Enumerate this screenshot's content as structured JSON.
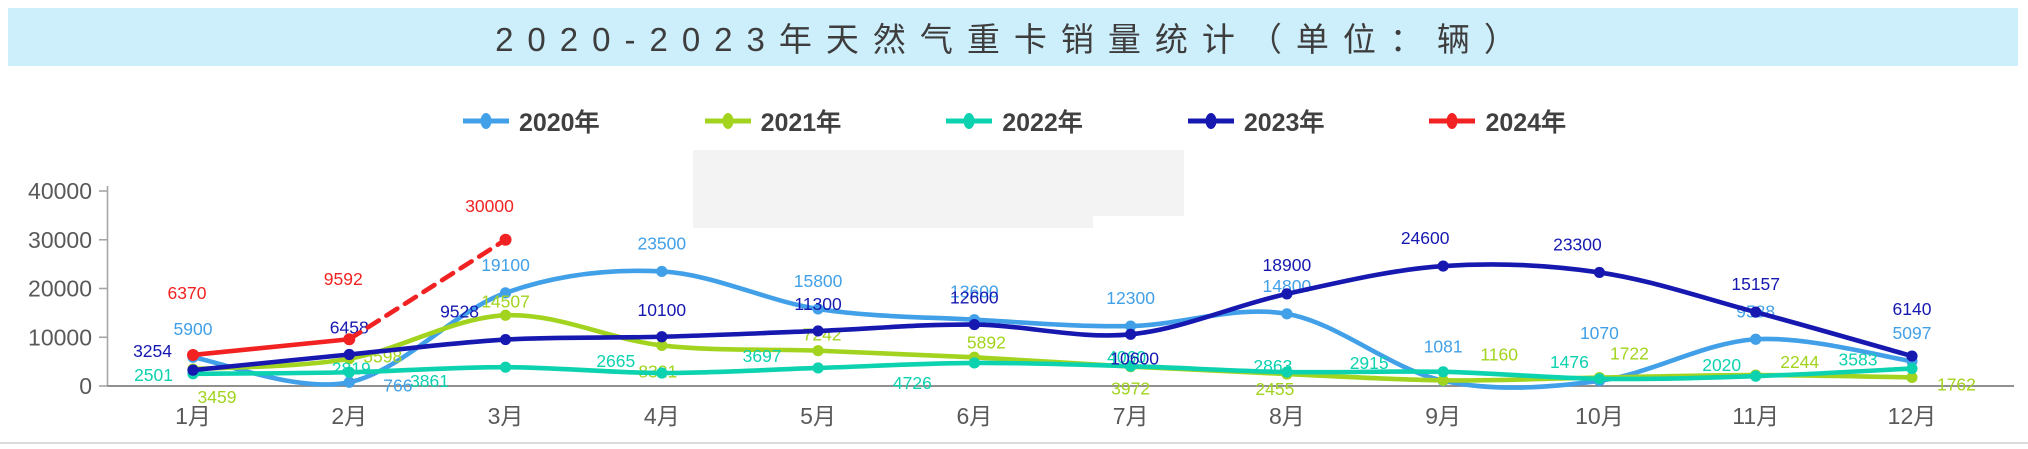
{
  "title": {
    "text": "2020-2023年天然气重卡销量统计（单位：辆）"
  },
  "chart_data": {
    "type": "line",
    "title": "2020-2023年天然气重卡销量统计（单位：辆）",
    "categories": [
      "1月",
      "2月",
      "3月",
      "4月",
      "5月",
      "6月",
      "7月",
      "8月",
      "9月",
      "10月",
      "11月",
      "12月"
    ],
    "y_ticks": [
      0,
      10000,
      20000,
      30000,
      40000
    ],
    "ylim": [
      0,
      40000
    ],
    "grid": false,
    "legend_position": "top",
    "series": [
      {
        "name": "2020年",
        "color": "#41a0e8",
        "line_style": "solid",
        "values": [
          5900,
          766,
          19100,
          23500,
          15800,
          13600,
          12300,
          14800,
          1081,
          1070,
          9588,
          5097
        ]
      },
      {
        "name": "2021年",
        "color": "#a2d41f",
        "line_style": "solid",
        "values": [
          3459,
          5598,
          14507,
          8321,
          7242,
          5892,
          3972,
          2455,
          1160,
          1722,
          2244,
          1762
        ]
      },
      {
        "name": "2022年",
        "color": "#0cd2b0",
        "line_style": "solid",
        "values": [
          2501,
          2819,
          3861,
          2665,
          3697,
          4726,
          4060,
          2863,
          2915,
          1476,
          2020,
          3583
        ]
      },
      {
        "name": "2023年",
        "color": "#1618b0",
        "line_style": "solid",
        "values": [
          3254,
          6458,
          9528,
          10100,
          11300,
          12600,
          10600,
          18900,
          24600,
          23300,
          15157,
          6140
        ]
      },
      {
        "name": "2024年",
        "color": "#f22222",
        "line_style": "solid_then_dashed",
        "values": [
          6370,
          9592,
          30000
        ]
      }
    ],
    "colors": {
      "title_bar_bg": "#cdeefb",
      "axis_text": "#595959",
      "axis_line": "#a6a6a6",
      "x_axis_line": "#808080",
      "legend_text": "#404040",
      "bottom_border": "#dcdcdc"
    }
  }
}
